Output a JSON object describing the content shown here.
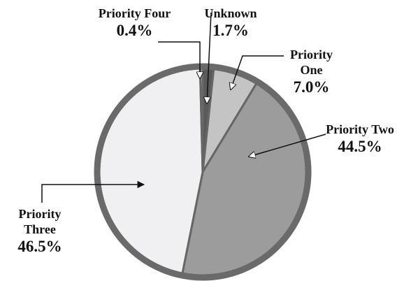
{
  "chart_data": {
    "type": "pie",
    "categories": [
      "Unknown",
      "Priority One",
      "Priority Two",
      "Priority Three",
      "Priority Four"
    ],
    "values": [
      1.7,
      7.0,
      44.5,
      46.5,
      0.4
    ],
    "value_labels": [
      "1.7%",
      "7.0%",
      "44.5%",
      "46.5%",
      "0.4%"
    ],
    "colors": [
      "#5a5a5a",
      "#c4c4c4",
      "#9c9c9c",
      "#f0f0f2",
      "#e2e2e2"
    ]
  }
}
